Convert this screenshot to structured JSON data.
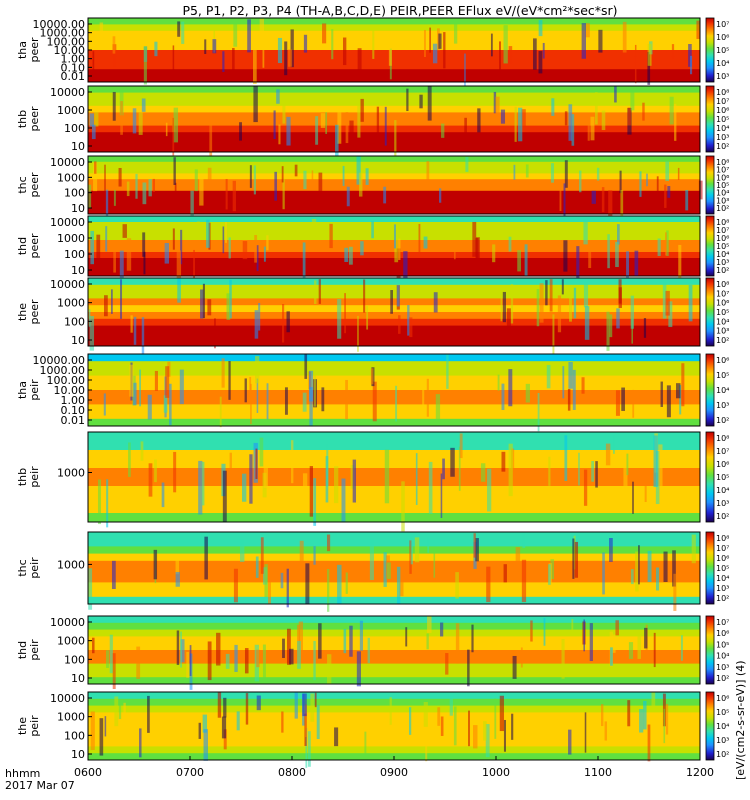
{
  "title": "P5, P1, P2, P3, P4 (TH-A,B,C,D,E) PEIR,PEER EFlux eV/(eV*cm²*sec*sr)",
  "colorbar_label": "[eV/(cm2-s-sr-eV)] (4)",
  "colors": {
    "background": "#ffffff",
    "frame": "#000000",
    "palette": [
      "#1a0050",
      "#2020d0",
      "#1e90ff",
      "#00c8f0",
      "#30e0b0",
      "#60e040",
      "#c8e000",
      "#ffd000",
      "#ff8000",
      "#f03000",
      "#c00000"
    ]
  },
  "footer": {
    "hhmm": "hhmm",
    "date": "2017 Mar 07"
  },
  "chart_data": {
    "type": "heatmap",
    "x_axis": {
      "ticks": [
        "0600",
        "0700",
        "0800",
        "0900",
        "1000",
        "1100",
        "1200"
      ],
      "range": [
        "0600",
        "1200"
      ]
    },
    "panels": [
      {
        "id": "tha-peer",
        "label": [
          "tha",
          "peer"
        ],
        "species": "electron",
        "probe": "P5",
        "y_ticks": [
          "10000.00",
          "1000.00",
          "100.00",
          "10.00",
          "1.00",
          "0.10",
          "0.01"
        ],
        "log": true,
        "cbar_ticks": [
          "10⁷",
          "10⁶",
          "10⁵",
          "10⁴",
          "10³"
        ]
      },
      {
        "id": "thb-peer",
        "label": [
          "thb",
          "peer"
        ],
        "species": "electron",
        "probe": "P1",
        "y_ticks": [
          "10000",
          "1000",
          "100",
          "10"
        ],
        "log": true,
        "cbar_ticks": [
          "10⁸",
          "10⁷",
          "10⁶",
          "10⁵",
          "10⁴",
          "10³",
          "10²"
        ]
      },
      {
        "id": "thc-peer",
        "label": [
          "thc",
          "peer"
        ],
        "species": "electron",
        "probe": "P2",
        "y_ticks": [
          "10000",
          "1000",
          "100",
          "10"
        ],
        "log": true,
        "cbar_ticks": [
          "10⁸",
          "10⁷",
          "10⁶",
          "10⁵",
          "10⁴",
          "10³",
          "10²"
        ]
      },
      {
        "id": "thd-peer",
        "label": [
          "thd",
          "peer"
        ],
        "species": "electron",
        "probe": "P3",
        "y_ticks": [
          "10000",
          "1000",
          "100",
          "10"
        ],
        "log": true,
        "cbar_ticks": [
          "10⁸",
          "10⁷",
          "10⁶",
          "10⁵",
          "10⁴",
          "10³",
          "10²"
        ]
      },
      {
        "id": "the-peer",
        "label": [
          "the",
          "peer"
        ],
        "species": "electron",
        "probe": "P4",
        "y_ticks": [
          "10000",
          "1000",
          "100",
          "10"
        ],
        "log": true,
        "cbar_ticks": [
          "10⁸",
          "10⁷",
          "10⁶",
          "10⁵",
          "10⁴",
          "10³",
          "10²"
        ]
      },
      {
        "id": "tha-peir",
        "label": [
          "tha",
          "peir"
        ],
        "species": "ion",
        "probe": "P5",
        "y_ticks": [
          "10000.00",
          "1000.00",
          "100.00",
          "10.00",
          "1.00",
          "0.10",
          "0.01"
        ],
        "log": true,
        "cbar_ticks": [
          "10⁶",
          "10⁵",
          "10⁴",
          "10³",
          "10²"
        ]
      },
      {
        "id": "thb-peir",
        "label": [
          "thb",
          "peir"
        ],
        "species": "ion",
        "probe": "P1",
        "y_ticks": [
          "1000"
        ],
        "log": true,
        "cbar_ticks": [
          "10⁸",
          "10⁷",
          "10⁶",
          "10⁵",
          "10⁴",
          "10³",
          "10²"
        ]
      },
      {
        "id": "thc-peir",
        "label": [
          "thc",
          "peir"
        ],
        "species": "ion",
        "probe": "P2",
        "y_ticks": [
          "1000"
        ],
        "log": true,
        "cbar_ticks": [
          "10⁸",
          "10⁷",
          "10⁶",
          "10⁵",
          "10⁴",
          "10³",
          "10²"
        ]
      },
      {
        "id": "thd-peir",
        "label": [
          "thd",
          "peir"
        ],
        "species": "ion",
        "probe": "P3",
        "y_ticks": [
          "10000",
          "1000",
          "100",
          "10"
        ],
        "log": true,
        "cbar_ticks": [
          "10⁷",
          "10⁶",
          "10⁵",
          "10⁴",
          "10³",
          "10²"
        ]
      },
      {
        "id": "the-peir",
        "label": [
          "the",
          "peir"
        ],
        "species": "ion",
        "probe": "P4",
        "y_ticks": [
          "10000",
          "1000",
          "100",
          "10"
        ],
        "log": true,
        "cbar_ticks": [
          "10⁶",
          "10⁵",
          "10⁴",
          "10³",
          "10²"
        ]
      }
    ]
  }
}
